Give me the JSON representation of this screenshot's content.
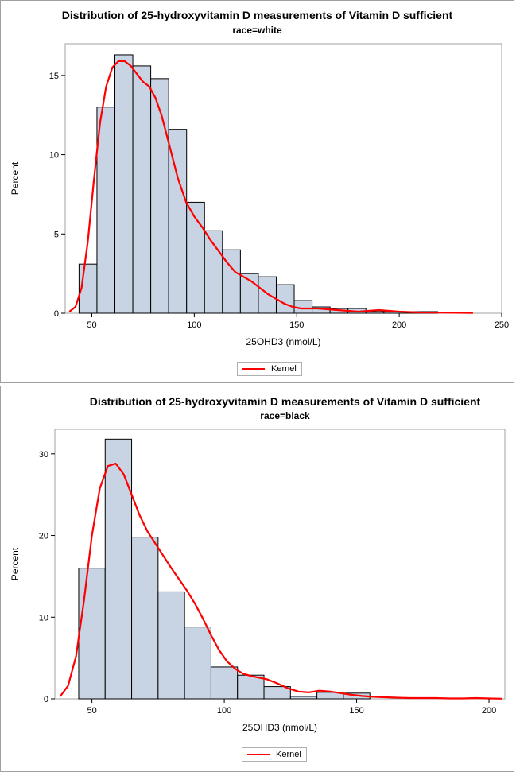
{
  "chart_data": [
    {
      "type": "histogram",
      "title": "Distribution of 25-hydroxyvitamin D measurements of Vitamin D sufficient",
      "subtitle": "race=white",
      "xlabel": "25OHD3 (nmol/L)",
      "ylabel": "Percent",
      "xlim": [
        37,
        250
      ],
      "ylim": [
        0,
        17
      ],
      "xticks": [
        50,
        100,
        150,
        200,
        250
      ],
      "yticks": [
        0,
        5,
        10,
        15
      ],
      "bin_edges": [
        43.75,
        52.5,
        61.25,
        70,
        78.75,
        87.5,
        96.25,
        105,
        113.75,
        122.5,
        131.25,
        140,
        148.75,
        157.5,
        166.25,
        175,
        183.75,
        192.5,
        201.25,
        210,
        218.75
      ],
      "values": [
        3.1,
        13.0,
        16.3,
        15.6,
        14.8,
        11.6,
        7.0,
        5.2,
        4.0,
        2.5,
        2.3,
        1.8,
        0.8,
        0.4,
        0.3,
        0.3,
        0.1,
        0.1,
        0.1,
        0.1
      ],
      "kernel": {
        "name": "Kernel",
        "color": "#ff0000",
        "x": [
          39,
          42,
          45,
          48,
          51,
          54,
          57,
          60,
          63,
          66,
          69,
          72,
          75,
          78,
          81,
          84,
          88,
          92,
          96,
          100,
          104,
          108,
          112,
          116,
          120,
          124,
          128,
          132,
          136,
          140,
          144,
          148,
          152,
          156,
          160,
          165,
          170,
          175,
          180,
          185,
          190,
          195,
          200,
          210,
          220,
          236
        ],
        "y": [
          0.1,
          0.4,
          1.6,
          4.5,
          8.4,
          12.0,
          14.3,
          15.5,
          15.9,
          15.9,
          15.6,
          15.1,
          14.6,
          14.3,
          13.6,
          12.5,
          10.5,
          8.5,
          7.0,
          6.1,
          5.4,
          4.6,
          3.9,
          3.2,
          2.6,
          2.3,
          2.0,
          1.6,
          1.2,
          0.9,
          0.6,
          0.4,
          0.3,
          0.3,
          0.3,
          0.25,
          0.2,
          0.15,
          0.1,
          0.15,
          0.2,
          0.15,
          0.1,
          0.05,
          0.04,
          0.02
        ]
      },
      "legend": "Kernel"
    },
    {
      "type": "histogram",
      "title": "Distribution of 25-hydroxyvitamin D measurements of Vitamin D sufficient",
      "subtitle": "race=black",
      "xlabel": "25OHD3 (nmol/L)",
      "ylabel": "Percent",
      "xlim": [
        36,
        206
      ],
      "ylim": [
        0,
        33
      ],
      "xticks": [
        50,
        100,
        150,
        200
      ],
      "yticks": [
        0,
        10,
        20,
        30
      ],
      "bin_edges": [
        45,
        55,
        65,
        75,
        85,
        95,
        105,
        115,
        125,
        135,
        145,
        155
      ],
      "values": [
        16.0,
        31.8,
        19.8,
        13.1,
        8.8,
        3.9,
        2.9,
        1.5,
        0.3,
        0.8,
        0.7
      ],
      "kernel": {
        "name": "Kernel",
        "color": "#ff0000",
        "x": [
          38,
          41,
          44,
          47,
          50,
          53,
          56,
          59,
          62,
          65,
          68,
          71,
          74,
          77,
          80,
          83,
          86,
          89,
          92,
          95,
          98,
          101,
          104,
          107,
          110,
          113,
          116,
          120,
          124,
          128,
          132,
          136,
          140,
          144,
          148,
          152,
          156,
          160,
          165,
          170,
          175,
          180,
          185,
          190,
          195,
          200,
          205
        ],
        "y": [
          0.3,
          1.6,
          5.2,
          12.0,
          20.0,
          25.8,
          28.5,
          28.8,
          27.5,
          25.0,
          22.5,
          20.5,
          19.0,
          17.5,
          16.0,
          14.6,
          13.2,
          11.6,
          9.8,
          7.8,
          6.0,
          4.6,
          3.7,
          3.1,
          2.8,
          2.6,
          2.4,
          1.9,
          1.3,
          0.9,
          0.8,
          1.0,
          0.9,
          0.7,
          0.5,
          0.35,
          0.25,
          0.2,
          0.15,
          0.1,
          0.1,
          0.1,
          0.05,
          0.05,
          0.1,
          0.05,
          0.02
        ]
      },
      "legend": "Kernel"
    }
  ],
  "colors": {
    "bar_fill": "#c8d3e3",
    "bar_stroke": "#000000",
    "kernel": "#ff0000",
    "frame": "#a0a0a0"
  }
}
